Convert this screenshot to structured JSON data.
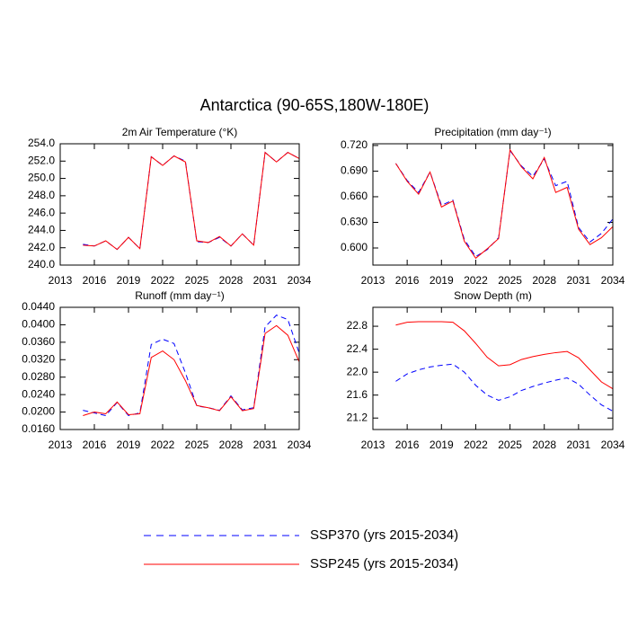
{
  "title": "Antarctica (90-65S,180W-180E)",
  "chart_data": [
    {
      "type": "line",
      "title": "2m Air Temperature (°K)",
      "x": [
        2015,
        2016,
        2017,
        2018,
        2019,
        2020,
        2021,
        2022,
        2023,
        2024,
        2025,
        2026,
        2027,
        2028,
        2029,
        2030,
        2031,
        2032,
        2033,
        2034
      ],
      "xlim": [
        2013,
        2034
      ],
      "xticks": [
        2013,
        2016,
        2019,
        2022,
        2025,
        2028,
        2031,
        2034
      ],
      "ylim": [
        240,
        254
      ],
      "yticks": [
        {
          "value": 240,
          "label": "240.0"
        },
        {
          "value": 242,
          "label": "242.0"
        },
        {
          "value": 244,
          "label": "244.0"
        },
        {
          "value": 246,
          "label": "246.0"
        },
        {
          "value": 248,
          "label": "248.0"
        },
        {
          "value": 250,
          "label": "250.0"
        },
        {
          "value": 252,
          "label": "252.0"
        },
        {
          "value": 254,
          "label": "254.0"
        }
      ],
      "series": [
        {
          "name": "SSP370 (yrs 2015-2034)",
          "color": "#0000ff",
          "dash": true,
          "values": [
            242.4,
            242.2,
            242.8,
            241.8,
            243.2,
            241.9,
            252.5,
            251.5,
            252.6,
            252.0,
            242.7,
            242.6,
            243.2,
            242.2,
            243.6,
            242.3,
            253.0,
            251.9,
            253.0,
            252.3
          ]
        },
        {
          "name": "SSP245 (yrs 2015-2034)",
          "color": "#ff0000",
          "dash": false,
          "values": [
            242.3,
            242.2,
            242.8,
            241.8,
            243.2,
            241.9,
            252.5,
            251.5,
            252.6,
            251.9,
            242.8,
            242.6,
            243.3,
            242.2,
            243.6,
            242.3,
            253.0,
            251.9,
            253.0,
            252.3
          ]
        }
      ]
    },
    {
      "type": "line",
      "title": "Precipitation (mm day⁻¹)",
      "x": [
        2015,
        2016,
        2017,
        2018,
        2019,
        2020,
        2021,
        2022,
        2023,
        2024,
        2025,
        2026,
        2027,
        2028,
        2029,
        2030,
        2031,
        2032,
        2033,
        2034
      ],
      "xlim": [
        2013,
        2034
      ],
      "xticks": [
        2013,
        2016,
        2019,
        2022,
        2025,
        2028,
        2031,
        2034
      ],
      "ylim": [
        0.58,
        0.722
      ],
      "yticks": [
        {
          "value": 0.6,
          "label": "0.600"
        },
        {
          "value": 0.63,
          "label": "0.630"
        },
        {
          "value": 0.66,
          "label": "0.660"
        },
        {
          "value": 0.69,
          "label": "0.690"
        },
        {
          "value": 0.72,
          "label": "0.720"
        }
      ],
      "series": [
        {
          "name": "SSP370 (yrs 2015-2034)",
          "color": "#0000ff",
          "dash": true,
          "values": [
            0.699,
            0.679,
            0.665,
            0.689,
            0.65,
            0.656,
            0.61,
            0.59,
            0.598,
            0.612,
            0.714,
            0.696,
            0.684,
            0.704,
            0.673,
            0.678,
            0.624,
            0.607,
            0.617,
            0.634
          ]
        },
        {
          "name": "SSP245 (yrs 2015-2034)",
          "color": "#ff0000",
          "dash": false,
          "values": [
            0.699,
            0.678,
            0.663,
            0.689,
            0.648,
            0.655,
            0.608,
            0.588,
            0.599,
            0.611,
            0.715,
            0.695,
            0.681,
            0.706,
            0.665,
            0.671,
            0.622,
            0.604,
            0.612,
            0.625
          ]
        }
      ]
    },
    {
      "type": "line",
      "title": "Runoff (mm day⁻¹)",
      "x": [
        2015,
        2016,
        2017,
        2018,
        2019,
        2020,
        2021,
        2022,
        2023,
        2024,
        2025,
        2026,
        2027,
        2028,
        2029,
        2030,
        2031,
        2032,
        2033,
        2034
      ],
      "xlim": [
        2013,
        2034
      ],
      "xticks": [
        2013,
        2016,
        2019,
        2022,
        2025,
        2028,
        2031,
        2034
      ],
      "ylim": [
        0.016,
        0.044
      ],
      "yticks": [
        {
          "value": 0.016,
          "label": "0.0160"
        },
        {
          "value": 0.02,
          "label": "0.0200"
        },
        {
          "value": 0.024,
          "label": "0.0240"
        },
        {
          "value": 0.028,
          "label": "0.0280"
        },
        {
          "value": 0.032,
          "label": "0.0320"
        },
        {
          "value": 0.036,
          "label": "0.0360"
        },
        {
          "value": 0.04,
          "label": "0.0400"
        },
        {
          "value": 0.044,
          "label": "0.0440"
        }
      ],
      "series": [
        {
          "name": "SSP370 (yrs 2015-2034)",
          "color": "#0000ff",
          "dash": true,
          "values": [
            0.0204,
            0.0198,
            0.0192,
            0.0222,
            0.0192,
            0.0198,
            0.0355,
            0.0367,
            0.0357,
            0.029,
            0.0214,
            0.021,
            0.0204,
            0.0237,
            0.0205,
            0.021,
            0.0395,
            0.0422,
            0.0412,
            0.0335
          ]
        },
        {
          "name": "SSP245 (yrs 2015-2034)",
          "color": "#ff0000",
          "dash": false,
          "values": [
            0.0192,
            0.02,
            0.0196,
            0.0223,
            0.0194,
            0.0196,
            0.0325,
            0.034,
            0.032,
            0.0272,
            0.0215,
            0.021,
            0.0203,
            0.0235,
            0.0203,
            0.0208,
            0.038,
            0.0398,
            0.0376,
            0.0315
          ]
        }
      ]
    },
    {
      "type": "line",
      "title": "Snow Depth (m)",
      "x": [
        2015,
        2016,
        2017,
        2018,
        2019,
        2020,
        2021,
        2022,
        2023,
        2024,
        2025,
        2026,
        2027,
        2028,
        2029,
        2030,
        2031,
        2032,
        2033,
        2034
      ],
      "xlim": [
        2013,
        2034
      ],
      "xticks": [
        2013,
        2016,
        2019,
        2022,
        2025,
        2028,
        2031,
        2034
      ],
      "ylim": [
        21.0,
        23.13
      ],
      "yticks": [
        21.2,
        21.6,
        {
          "value": 22,
          "label": "22.0"
        },
        22.4,
        22.8
      ],
      "series": [
        {
          "name": "SSP370 (yrs 2015-2034)",
          "color": "#0000ff",
          "dash": true,
          "values": [
            21.84,
            21.97,
            22.04,
            22.09,
            22.12,
            22.14,
            22.0,
            21.77,
            21.6,
            21.51,
            21.57,
            21.68,
            21.75,
            21.81,
            21.86,
            21.9,
            21.79,
            21.6,
            21.43,
            21.32
          ]
        },
        {
          "name": "SSP245 (yrs 2015-2034)",
          "color": "#ff0000",
          "dash": false,
          "values": [
            22.82,
            22.87,
            22.88,
            22.88,
            22.88,
            22.87,
            22.72,
            22.5,
            22.26,
            22.11,
            22.13,
            22.22,
            22.27,
            22.31,
            22.34,
            22.36,
            22.25,
            22.04,
            21.83,
            21.71
          ]
        }
      ]
    }
  ]
}
